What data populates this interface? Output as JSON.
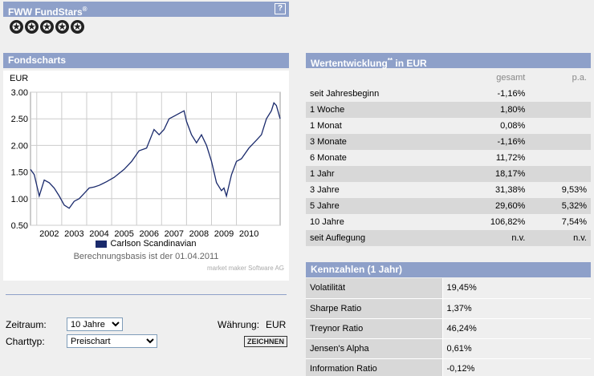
{
  "fundstars": {
    "title": "FWW FundStars",
    "title_sup": "®",
    "help": "?",
    "star_glyph": "✪",
    "rating": 5
  },
  "fondscharts": {
    "title": "Fondscharts",
    "legend": "Carlson Scandinavian",
    "basis": "Berechnungsbasis ist der 01.04.2011",
    "source": "market maker Software AG"
  },
  "controls": {
    "zeitraum_label": "Zeitraum:",
    "zeitraum_value": "10 Jahre",
    "charttyp_label": "Charttyp:",
    "charttyp_value": "Preischart",
    "waehrung_label": "Währung:",
    "waehrung_value": "EUR",
    "zeichnen": "ZEICHNEN"
  },
  "wertentwicklung": {
    "title": "Wertentwicklung",
    "title_sup": "**",
    "title_suffix": " in EUR",
    "col_gesamt": "gesamt",
    "col_pa": "p.a.",
    "rows": [
      {
        "label": "seit Jahresbeginn",
        "gesamt": "-1,16%",
        "pa": ""
      },
      {
        "label": "1 Woche",
        "gesamt": "1,80%",
        "pa": ""
      },
      {
        "label": "1 Monat",
        "gesamt": "0,08%",
        "pa": ""
      },
      {
        "label": "3 Monate",
        "gesamt": "-1,16%",
        "pa": ""
      },
      {
        "label": "6 Monate",
        "gesamt": "11,72%",
        "pa": ""
      },
      {
        "label": "1 Jahr",
        "gesamt": "18,17%",
        "pa": ""
      },
      {
        "label": "3 Jahre",
        "gesamt": "31,38%",
        "pa": "9,53%"
      },
      {
        "label": "5 Jahre",
        "gesamt": "29,60%",
        "pa": "5,32%"
      },
      {
        "label": "10 Jahre",
        "gesamt": "106,82%",
        "pa": "7,54%"
      },
      {
        "label": "seit Auflegung",
        "gesamt": "n.v.",
        "pa": "n.v."
      }
    ]
  },
  "kennzahlen": {
    "title": "Kennzahlen (1 Jahr)",
    "rows": [
      {
        "label": "Volatilität",
        "value": "19,45%"
      },
      {
        "label": "Sharpe Ratio",
        "value": "1,37%"
      },
      {
        "label": "Treynor Ratio",
        "value": "46,24%"
      },
      {
        "label": "Jensen's Alpha",
        "value": "0,61%"
      },
      {
        "label": "Information Ratio",
        "value": "-0,12%"
      }
    ]
  },
  "chart_data": {
    "type": "line",
    "ylabel": "EUR",
    "ylim": [
      0.5,
      3.0
    ],
    "yticks": [
      "3.00",
      "2.50",
      "2.00",
      "1.50",
      "1.00",
      "0.50"
    ],
    "xlim": [
      2001.25,
      2011.25
    ],
    "xticks": [
      "2002",
      "2003",
      "2004",
      "2005",
      "2006",
      "2007",
      "2008",
      "2009",
      "2010"
    ],
    "grid": true,
    "series": [
      {
        "name": "Carlson Scandinavian",
        "color": "#1a2a6c",
        "x": [
          2001.25,
          2001.4,
          2001.6,
          2001.8,
          2002.0,
          2002.2,
          2002.4,
          2002.6,
          2002.8,
          2003.0,
          2003.2,
          2003.4,
          2003.6,
          2003.8,
          2004.0,
          2004.3,
          2004.6,
          2005.0,
          2005.3,
          2005.6,
          2005.9,
          2006.2,
          2006.4,
          2006.6,
          2006.8,
          2007.0,
          2007.2,
          2007.4,
          2007.5,
          2007.7,
          2007.9,
          2008.1,
          2008.3,
          2008.5,
          2008.7,
          2008.9,
          2009.0,
          2009.1,
          2009.3,
          2009.5,
          2009.7,
          2010.0,
          2010.3,
          2010.5,
          2010.7,
          2010.9,
          2011.0,
          2011.1,
          2011.25
        ],
        "y": [
          1.55,
          1.45,
          1.05,
          1.35,
          1.3,
          1.2,
          1.05,
          0.88,
          0.82,
          0.95,
          1.0,
          1.1,
          1.2,
          1.22,
          1.25,
          1.32,
          1.4,
          1.55,
          1.7,
          1.9,
          1.95,
          2.3,
          2.2,
          2.3,
          2.5,
          2.55,
          2.6,
          2.65,
          2.45,
          2.2,
          2.05,
          2.2,
          2.0,
          1.7,
          1.3,
          1.15,
          1.2,
          1.05,
          1.45,
          1.7,
          1.75,
          1.95,
          2.1,
          2.2,
          2.5,
          2.65,
          2.8,
          2.75,
          2.5
        ]
      }
    ]
  }
}
